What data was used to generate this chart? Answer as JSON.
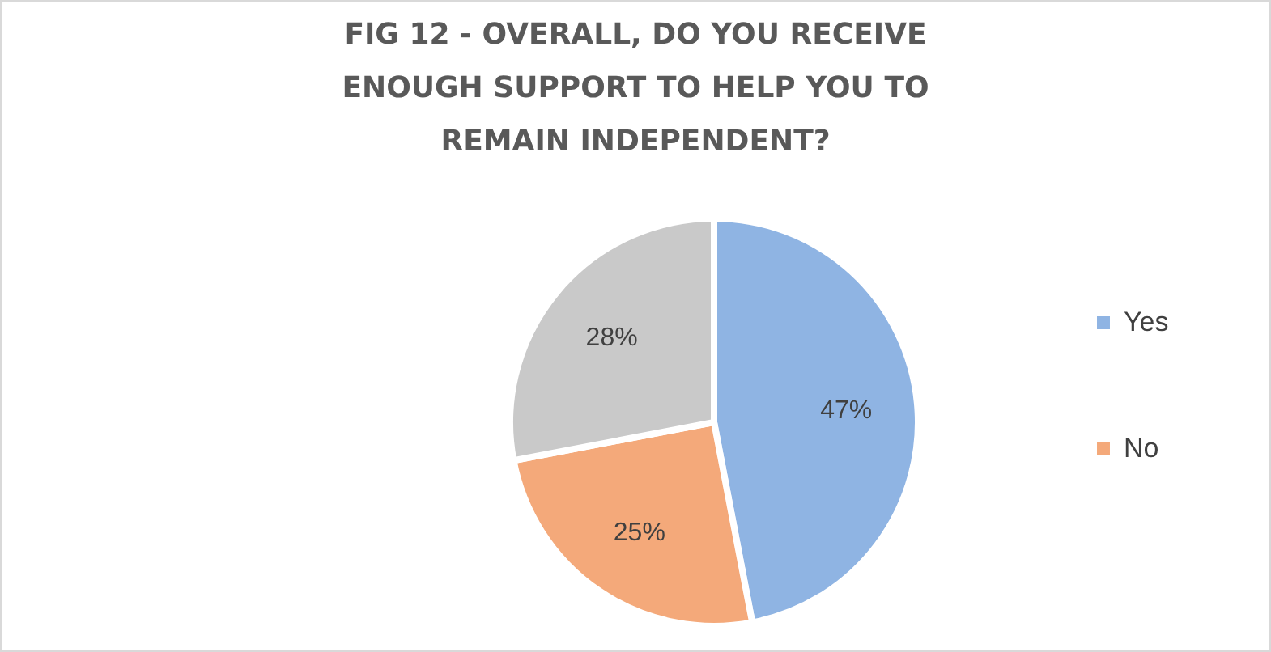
{
  "chart_data": {
    "type": "pie",
    "title": "FIG 12 - OVERALL, DO YOU RECEIVE\nENOUGH SUPPORT TO HELP YOU TO\nREMAIN INDEPENDENT?",
    "categories": [
      "Yes",
      "No",
      null
    ],
    "values": [
      47,
      25,
      28
    ],
    "colors": [
      "#8fb4e3",
      "#f4a97a",
      "#c9c9c9"
    ],
    "value_labels": [
      "47%",
      "25%",
      "28%"
    ],
    "legend": "right"
  }
}
